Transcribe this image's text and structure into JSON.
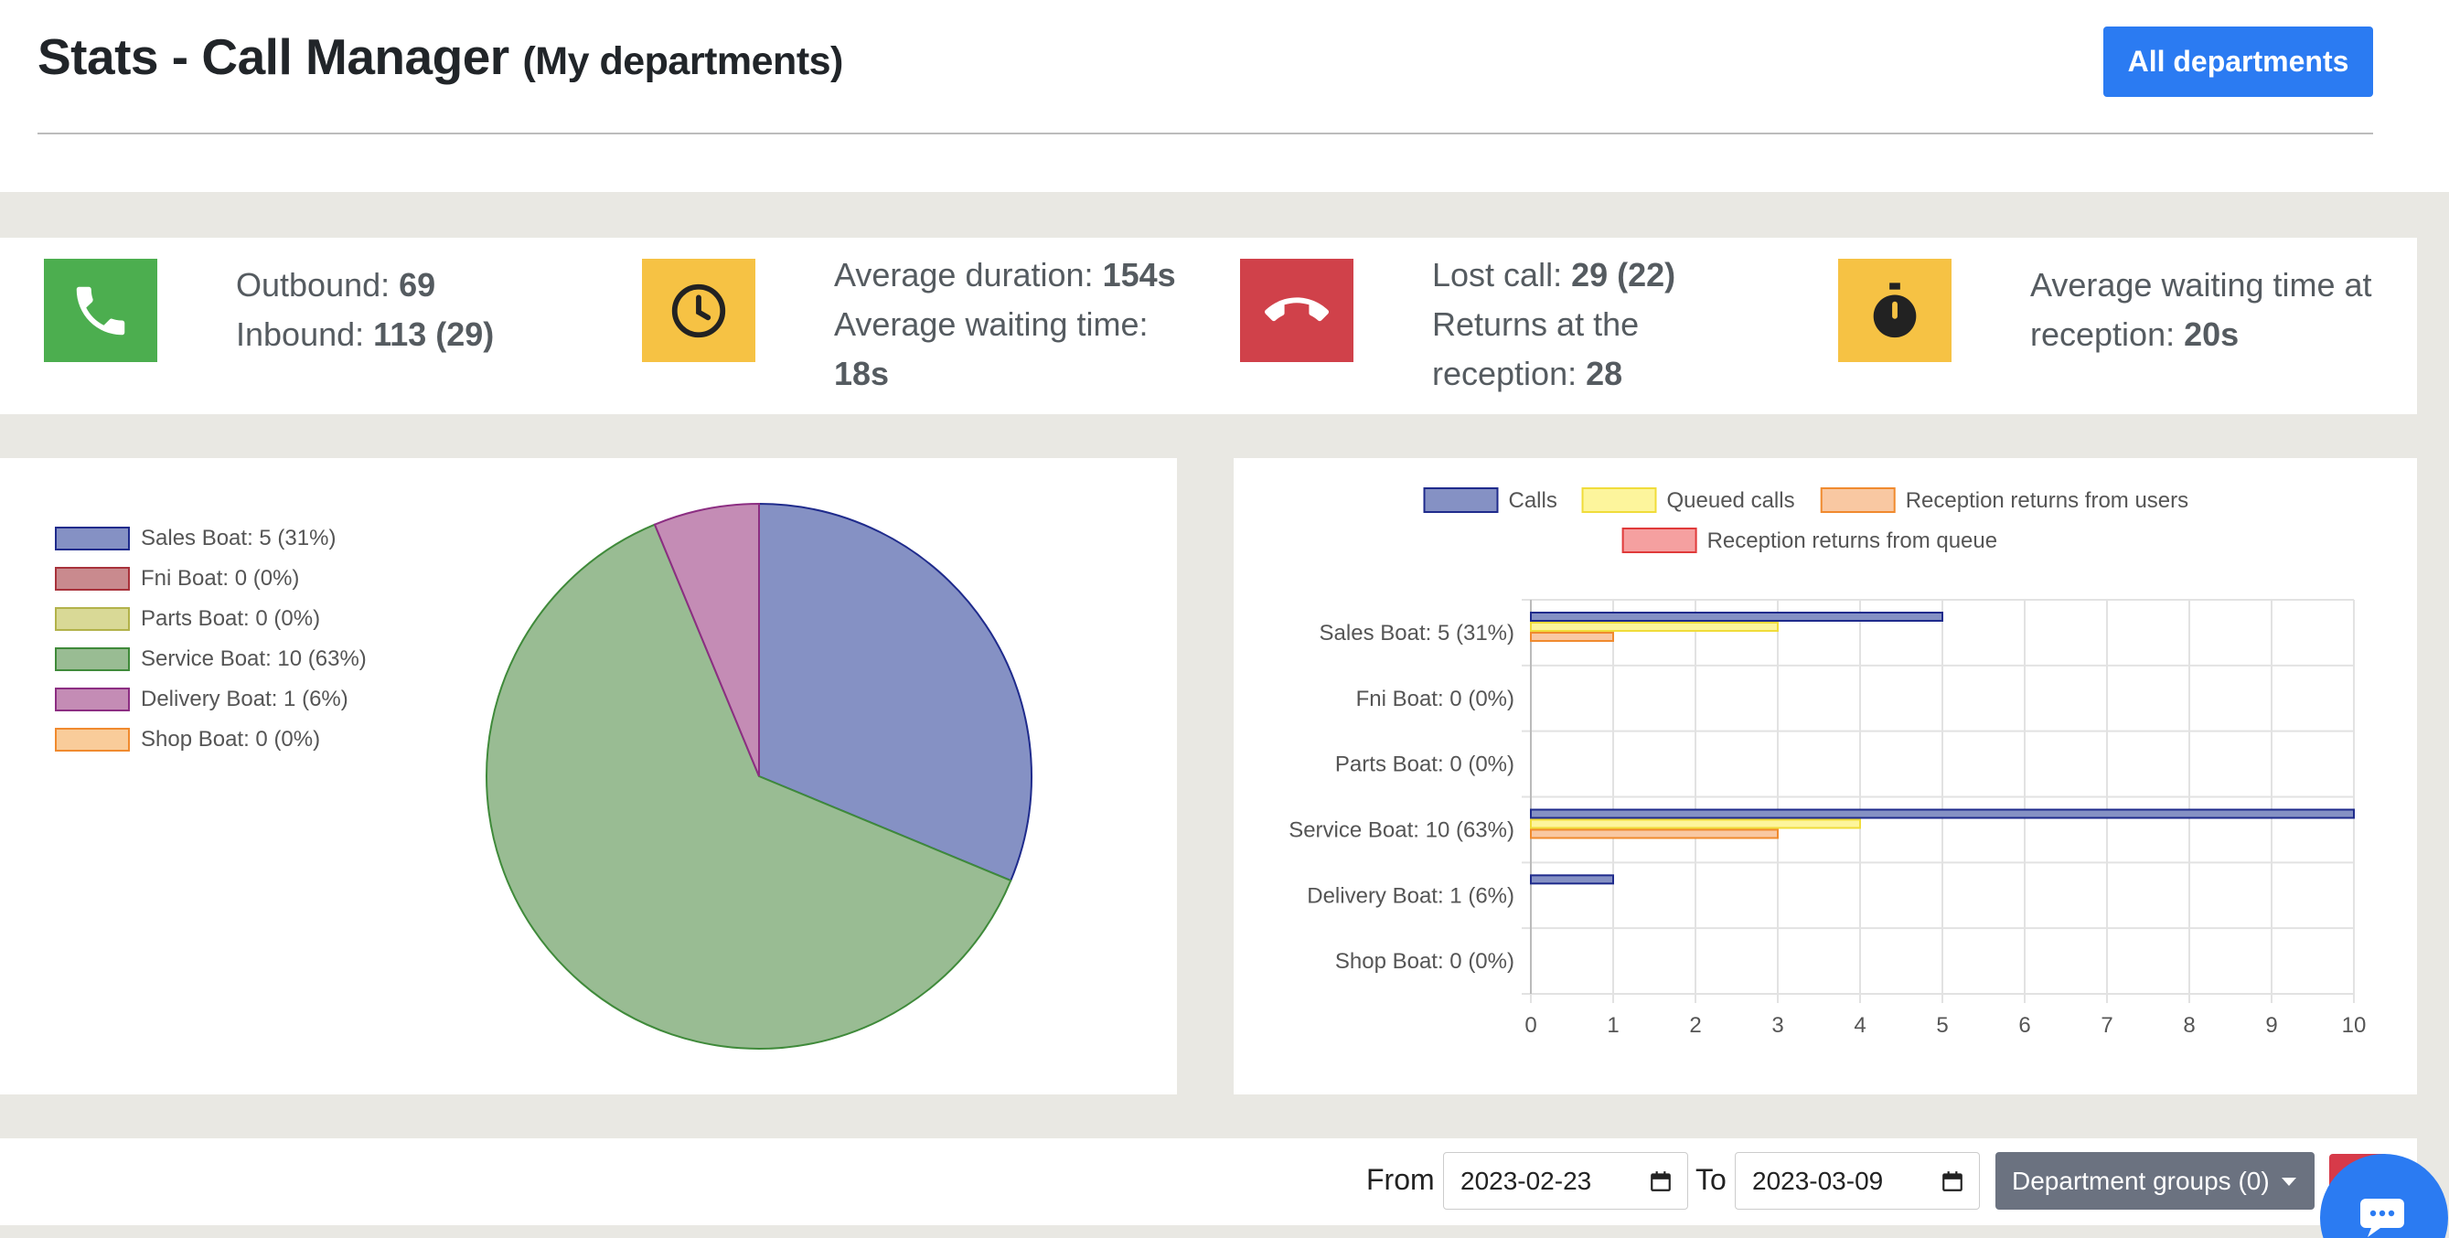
{
  "header": {
    "title": "Stats - Call Manager",
    "subtitle": "(My departments)",
    "all_departments_label": "All departments"
  },
  "stats": {
    "outbound_label": "Outbound:",
    "outbound_value": "69",
    "inbound_label": "Inbound:",
    "inbound_value": "113 (29)",
    "avg_duration_label": "Average duration:",
    "avg_duration_value": "154s",
    "avg_waiting_label": "Average waiting time:",
    "avg_waiting_value": "18s",
    "lost_call_label": "Lost call:",
    "lost_call_value": "29 (22)",
    "returns_label": "Returns at the reception:",
    "returns_value": "28",
    "reception_wait_label": "Average waiting time at reception:",
    "reception_wait_value": "20s",
    "colors": {
      "phone": "#4cae4f",
      "clock": "#f6c244",
      "lost": "#d0414a",
      "timer": "#f6c244"
    },
    "icons": [
      "phone-icon",
      "clock-icon",
      "hangup-icon",
      "stopwatch-icon"
    ]
  },
  "chart_data": [
    {
      "type": "pie",
      "categories": [
        "Sales Boat: 5 (31%)",
        "Fni Boat: 0 (0%)",
        "Parts Boat: 0 (0%)",
        "Service Boat: 10 (63%)",
        "Delivery Boat: 1 (6%)",
        "Shop Boat: 0 (0%)"
      ],
      "values": [
        5,
        0,
        0,
        10,
        1,
        0
      ],
      "colors": [
        "#8591c4",
        "#c98a8e",
        "#d9d996",
        "#99bc93",
        "#c48cb5",
        "#f9cc9a"
      ],
      "borders": [
        "#1f2b8c",
        "#a8323b",
        "#b2b24a",
        "#3f8a3a",
        "#8c2e82",
        "#f08a2e"
      ],
      "legend": "left"
    },
    {
      "type": "bar",
      "orientation": "horizontal",
      "categories": [
        "Sales Boat: 5 (31%)",
        "Fni Boat: 0 (0%)",
        "Parts Boat: 0 (0%)",
        "Service Boat: 10 (63%)",
        "Delivery Boat: 1 (6%)",
        "Shop Boat: 0 (0%)"
      ],
      "series": [
        {
          "name": "Calls",
          "values": [
            5,
            0,
            0,
            10,
            1,
            0
          ],
          "color": "#8591c4",
          "border": "#1f2b8c"
        },
        {
          "name": "Queued calls",
          "values": [
            3,
            0,
            0,
            4,
            0,
            0
          ],
          "color": "#fdf59c",
          "border": "#f0dc3a"
        },
        {
          "name": "Reception returns from users",
          "values": [
            1,
            0,
            0,
            3,
            0,
            0
          ],
          "color": "#f9c8a2",
          "border": "#f08a2e"
        },
        {
          "name": "Reception returns from queue",
          "values": [
            0,
            0,
            0,
            0,
            0,
            0
          ],
          "color": "#f5a0a0",
          "border": "#e03a3a"
        }
      ],
      "xlim": [
        0,
        10
      ],
      "xticks": [
        "0",
        "1",
        "2",
        "3",
        "4",
        "5",
        "6",
        "7",
        "8",
        "9",
        "10"
      ],
      "grid": true,
      "legend": "top"
    }
  ],
  "filters": {
    "from_label": "From",
    "from_value": "2023-02-23",
    "to_label": "To",
    "to_value": "2023-03-09",
    "dept_groups_label": "Department groups (0)"
  }
}
